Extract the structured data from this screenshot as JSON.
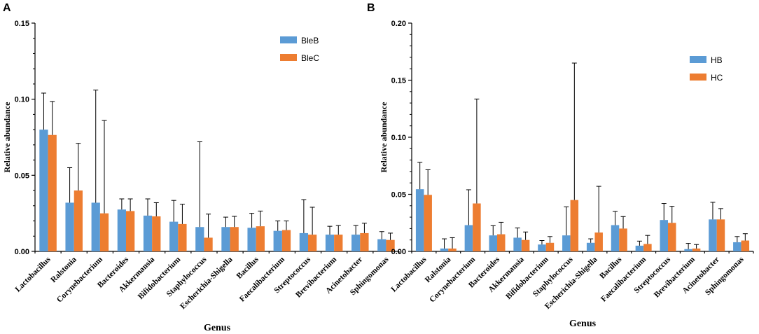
{
  "chart_data": [
    {
      "type": "bar",
      "panel": "A",
      "xlabel": "Genus",
      "ylabel": "Relative abundance",
      "ylim": [
        0,
        0.15
      ],
      "yticks": [
        "0.00",
        "0.05",
        "0.10",
        "0.15"
      ],
      "categories": [
        "Lactobacillus",
        "Ralstonia",
        "Corynebacterium",
        "Bacteroides",
        "Akkermansia",
        "Bifidobacterium",
        "Staphylococcus",
        "Escherichia-Shigella",
        "Bacillus",
        "Faecalibacterium",
        "Streptococcus",
        "Brevibacterium",
        "Acinetobacter",
        "Sphingomonas"
      ],
      "series": [
        {
          "name": "BleB",
          "color": "#5B9BD5",
          "values": [
            0.08,
            0.032,
            0.032,
            0.0275,
            0.0235,
            0.0195,
            0.016,
            0.016,
            0.0155,
            0.0135,
            0.012,
            0.011,
            0.011,
            0.008
          ],
          "errors": [
            0.024,
            0.023,
            0.074,
            0.007,
            0.011,
            0.014,
            0.056,
            0.0065,
            0.0095,
            0.0065,
            0.022,
            0.0055,
            0.006,
            0.005
          ]
        },
        {
          "name": "BleC",
          "color": "#ED7D31",
          "values": [
            0.0765,
            0.04,
            0.025,
            0.0265,
            0.023,
            0.018,
            0.009,
            0.016,
            0.0165,
            0.014,
            0.011,
            0.011,
            0.012,
            0.0075
          ],
          "errors": [
            0.022,
            0.031,
            0.061,
            0.008,
            0.009,
            0.013,
            0.0155,
            0.007,
            0.01,
            0.006,
            0.018,
            0.006,
            0.0065,
            0.0045
          ]
        }
      ]
    },
    {
      "type": "bar",
      "panel": "B",
      "xlabel": "Genus",
      "ylabel": "Relative abundance",
      "ylim": [
        0,
        0.2
      ],
      "yticks": [
        "0.00",
        "0.05",
        "0.10",
        "0.15",
        "0.20"
      ],
      "categories": [
        "Lactobacillus",
        "Ralstonia",
        "Corynebacterium",
        "Bacteroides",
        "Akkermansia",
        "Bifidobacterium",
        "Staphylococcus",
        "Escherichia-Shigella",
        "Bacillus",
        "Faecalibacterium",
        "Streptococcus",
        "Brevibacterium",
        "Acinetobacter",
        "Sphingomonas"
      ],
      "series": [
        {
          "name": "HB",
          "color": "#5B9BD5",
          "values": [
            0.0545,
            0.0025,
            0.023,
            0.014,
            0.012,
            0.006,
            0.014,
            0.0075,
            0.023,
            0.005,
            0.0275,
            0.002,
            0.028,
            0.008
          ],
          "errors": [
            0.0235,
            0.0085,
            0.031,
            0.0085,
            0.0085,
            0.0035,
            0.025,
            0.0035,
            0.012,
            0.004,
            0.0145,
            0.005,
            0.015,
            0.005
          ]
        },
        {
          "name": "HC",
          "color": "#ED7D31",
          "values": [
            0.0495,
            0.0025,
            0.042,
            0.015,
            0.01,
            0.0075,
            0.045,
            0.0165,
            0.02,
            0.0065,
            0.025,
            0.0025,
            0.028,
            0.0095
          ],
          "errors": [
            0.022,
            0.0095,
            0.0915,
            0.0105,
            0.007,
            0.0055,
            0.12,
            0.0405,
            0.0105,
            0.0075,
            0.0145,
            0.0035,
            0.0095,
            0.006
          ]
        }
      ]
    }
  ]
}
